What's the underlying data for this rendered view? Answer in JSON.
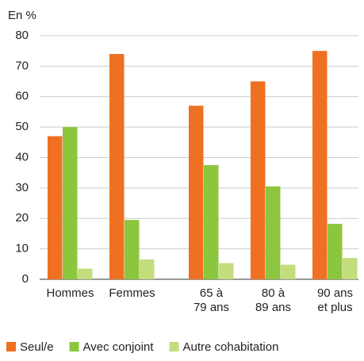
{
  "chart_data": {
    "type": "bar",
    "y_label": "En %",
    "categories": [
      "Hommes",
      "Femmes",
      null,
      "65 à\n79 ans",
      "80 à\n89 ans",
      "90 ans\net plus"
    ],
    "series": [
      {
        "name": "Seul/e",
        "color": "#f07022",
        "values": [
          47,
          74,
          null,
          57,
          65,
          75
        ]
      },
      {
        "name": "Avec conjoint",
        "color": "#8cc63f",
        "values": [
          50,
          19.5,
          null,
          37.5,
          30.5,
          18.2
        ]
      },
      {
        "name": "Autre cohabitation",
        "color": "#c3dd7c",
        "values": [
          3.5,
          6.5,
          null,
          5.3,
          4.8,
          7
        ]
      }
    ],
    "ylim": [
      0,
      80
    ],
    "yticks": [
      0,
      10,
      20,
      30,
      40,
      50,
      60,
      70,
      80
    ],
    "grid": true,
    "legend": "bottom"
  }
}
